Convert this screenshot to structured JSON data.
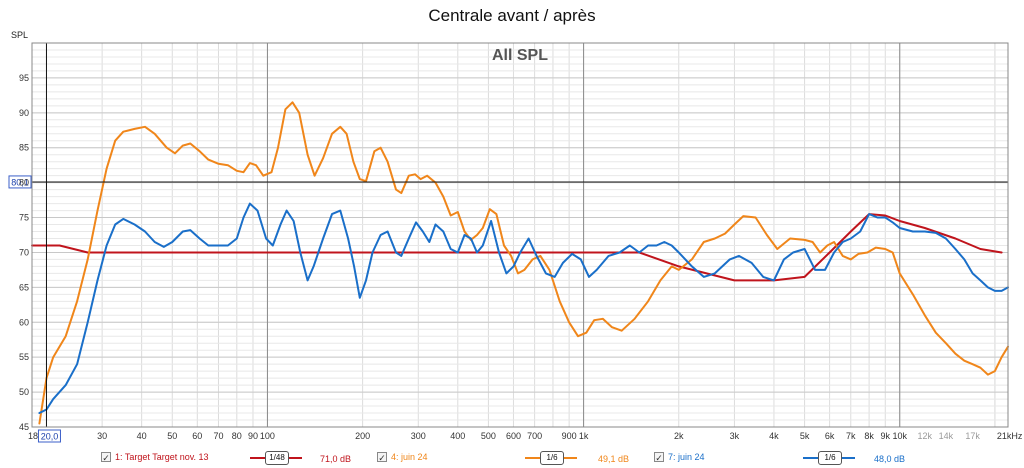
{
  "chart_data": {
    "type": "line",
    "title": "Centrale avant / après",
    "annotation": "All SPL",
    "ylabel": "SPL",
    "x_scale": "log",
    "xlim": [
      18,
      22000
    ],
    "ylim": [
      45,
      100
    ],
    "y_ticks": [
      45,
      50,
      55,
      60,
      65,
      70,
      75,
      80,
      85,
      90,
      95
    ],
    "x_ticks": [
      {
        "v": 18,
        "label": "18",
        "major": false
      },
      {
        "v": 30,
        "label": "30",
        "major": false
      },
      {
        "v": 40,
        "label": "40",
        "major": false
      },
      {
        "v": 50,
        "label": "50",
        "major": false
      },
      {
        "v": 60,
        "label": "60",
        "major": false
      },
      {
        "v": 70,
        "label": "70",
        "major": false
      },
      {
        "v": 80,
        "label": "80",
        "major": false
      },
      {
        "v": 90,
        "label": "90",
        "major": false
      },
      {
        "v": 100,
        "label": "100",
        "major": true
      },
      {
        "v": 200,
        "label": "200",
        "major": false
      },
      {
        "v": 300,
        "label": "300",
        "major": false
      },
      {
        "v": 400,
        "label": "400",
        "major": false
      },
      {
        "v": 500,
        "label": "500",
        "major": false
      },
      {
        "v": 600,
        "label": "600",
        "major": false
      },
      {
        "v": 700,
        "label": "700",
        "major": false
      },
      {
        "v": 900,
        "label": "900",
        "major": false
      },
      {
        "v": 1000,
        "label": "1k",
        "major": true
      },
      {
        "v": 2000,
        "label": "2k",
        "major": false
      },
      {
        "v": 3000,
        "label": "3k",
        "major": false
      },
      {
        "v": 4000,
        "label": "4k",
        "major": false
      },
      {
        "v": 5000,
        "label": "5k",
        "major": false
      },
      {
        "v": 6000,
        "label": "6k",
        "major": false
      },
      {
        "v": 7000,
        "label": "7k",
        "major": false
      },
      {
        "v": 8000,
        "label": "8k",
        "major": false
      },
      {
        "v": 9000,
        "label": "9k",
        "major": false
      },
      {
        "v": 10000,
        "label": "10k",
        "major": true
      },
      {
        "v": 12000,
        "label": "12k",
        "major": false,
        "grey": true
      },
      {
        "v": 14000,
        "label": "14k",
        "major": false,
        "grey": true
      },
      {
        "v": 17000,
        "label": "17k",
        "major": false,
        "grey": true
      },
      {
        "v": 21000,
        "label": "21kHz",
        "major": false
      }
    ],
    "cursor": {
      "x": 20.0,
      "x_label": "20,0",
      "y": 80.1,
      "y_label": "80,1"
    },
    "grid": true,
    "legend": "bottom",
    "series": [
      {
        "name": "1: Target Target nov. 13",
        "color": "#c0141c",
        "smoothing": "1/48",
        "value_label": "71,0 dB",
        "points": [
          [
            18,
            71
          ],
          [
            22,
            71
          ],
          [
            27,
            70
          ],
          [
            40,
            70
          ],
          [
            100,
            70
          ],
          [
            200,
            70
          ],
          [
            500,
            70
          ],
          [
            1000,
            70
          ],
          [
            1500,
            70
          ],
          [
            2000,
            68
          ],
          [
            3000,
            66
          ],
          [
            4000,
            66
          ],
          [
            5000,
            66.5
          ],
          [
            6000,
            70
          ],
          [
            7000,
            73
          ],
          [
            8000,
            75.5
          ],
          [
            9000,
            75.3
          ],
          [
            10000,
            74.5
          ],
          [
            12000,
            73.5
          ],
          [
            15000,
            72
          ],
          [
            18000,
            70.5
          ],
          [
            21000,
            70
          ]
        ]
      },
      {
        "name": "4: juin 24",
        "color": "#f0861a",
        "smoothing": "1/6",
        "value_label": "49,1 dB",
        "points": [
          [
            19,
            45.5
          ],
          [
            20,
            52
          ],
          [
            21,
            55
          ],
          [
            23,
            58
          ],
          [
            25,
            63
          ],
          [
            27,
            69
          ],
          [
            29,
            76
          ],
          [
            31,
            82
          ],
          [
            33,
            86
          ],
          [
            35,
            87.3
          ],
          [
            38,
            87.7
          ],
          [
            41,
            88
          ],
          [
            44,
            87
          ],
          [
            48,
            85
          ],
          [
            51,
            84.2
          ],
          [
            54,
            85.3
          ],
          [
            57,
            85.6
          ],
          [
            61,
            84.5
          ],
          [
            65,
            83.3
          ],
          [
            70,
            82.7
          ],
          [
            75,
            82.5
          ],
          [
            80,
            81.7
          ],
          [
            84,
            81.5
          ],
          [
            88,
            82.8
          ],
          [
            92,
            82.5
          ],
          [
            97,
            81
          ],
          [
            103,
            81.5
          ],
          [
            108,
            85
          ],
          [
            114,
            90.5
          ],
          [
            120,
            91.5
          ],
          [
            126,
            90
          ],
          [
            134,
            84
          ],
          [
            141,
            81
          ],
          [
            150,
            83.5
          ],
          [
            160,
            87
          ],
          [
            170,
            88
          ],
          [
            178,
            87
          ],
          [
            187,
            83
          ],
          [
            196,
            80.5
          ],
          [
            205,
            80.2
          ],
          [
            218,
            84.5
          ],
          [
            228,
            85
          ],
          [
            240,
            83
          ],
          [
            255,
            79
          ],
          [
            265,
            78.5
          ],
          [
            280,
            81
          ],
          [
            293,
            81.2
          ],
          [
            305,
            80.5
          ],
          [
            320,
            81
          ],
          [
            340,
            80
          ],
          [
            360,
            78
          ],
          [
            380,
            75.3
          ],
          [
            400,
            75.8
          ],
          [
            420,
            73
          ],
          [
            440,
            71.8
          ],
          [
            460,
            72.5
          ],
          [
            480,
            73.5
          ],
          [
            505,
            76.2
          ],
          [
            530,
            75.5
          ],
          [
            560,
            71
          ],
          [
            590,
            69.5
          ],
          [
            620,
            67
          ],
          [
            650,
            67.5
          ],
          [
            690,
            69
          ],
          [
            730,
            69.5
          ],
          [
            780,
            67.5
          ],
          [
            840,
            63
          ],
          [
            900,
            60
          ],
          [
            960,
            58
          ],
          [
            1020,
            58.5
          ],
          [
            1080,
            60.3
          ],
          [
            1150,
            60.5
          ],
          [
            1230,
            59.3
          ],
          [
            1320,
            58.8
          ],
          [
            1450,
            60.5
          ],
          [
            1600,
            63
          ],
          [
            1750,
            66
          ],
          [
            1900,
            68
          ],
          [
            2000,
            67.5
          ],
          [
            2200,
            69
          ],
          [
            2400,
            71.5
          ],
          [
            2600,
            72
          ],
          [
            2800,
            72.7
          ],
          [
            3000,
            74
          ],
          [
            3200,
            75.2
          ],
          [
            3500,
            75
          ],
          [
            3800,
            72.5
          ],
          [
            4100,
            70.5
          ],
          [
            4500,
            72
          ],
          [
            5000,
            71.8
          ],
          [
            5300,
            71.5
          ],
          [
            5600,
            70
          ],
          [
            5900,
            71
          ],
          [
            6200,
            71.5
          ],
          [
            6600,
            69.5
          ],
          [
            7000,
            69
          ],
          [
            7400,
            69.8
          ],
          [
            7900,
            70
          ],
          [
            8400,
            70.7
          ],
          [
            9000,
            70.5
          ],
          [
            9500,
            70
          ],
          [
            10000,
            67
          ],
          [
            11000,
            64
          ],
          [
            12000,
            61
          ],
          [
            13000,
            58.5
          ],
          [
            14000,
            57
          ],
          [
            15000,
            55.5
          ],
          [
            16000,
            54.5
          ],
          [
            17000,
            54
          ],
          [
            18000,
            53.5
          ],
          [
            19000,
            52.5
          ],
          [
            20000,
            53
          ],
          [
            21000,
            55
          ],
          [
            22000,
            56.5
          ]
        ]
      },
      {
        "name": "7: juin 24",
        "color": "#1a6fc9",
        "smoothing": "1/6",
        "value_label": "48,0 dB",
        "points": [
          [
            19,
            47
          ],
          [
            20,
            47.5
          ],
          [
            21,
            49
          ],
          [
            23,
            51
          ],
          [
            25,
            54
          ],
          [
            27,
            60
          ],
          [
            29,
            66
          ],
          [
            31,
            71
          ],
          [
            33,
            74
          ],
          [
            35,
            74.8
          ],
          [
            38,
            74
          ],
          [
            41,
            73
          ],
          [
            44,
            71.5
          ],
          [
            47,
            70.8
          ],
          [
            50,
            71.5
          ],
          [
            54,
            73
          ],
          [
            57,
            73.2
          ],
          [
            61,
            72
          ],
          [
            65,
            71
          ],
          [
            70,
            71
          ],
          [
            75,
            71
          ],
          [
            80,
            72
          ],
          [
            84,
            75
          ],
          [
            88,
            77
          ],
          [
            93,
            76
          ],
          [
            99,
            72
          ],
          [
            104,
            71
          ],
          [
            110,
            74
          ],
          [
            115,
            76
          ],
          [
            121,
            74.5
          ],
          [
            127,
            70
          ],
          [
            134,
            66
          ],
          [
            140,
            68
          ],
          [
            150,
            72
          ],
          [
            160,
            75.5
          ],
          [
            170,
            76
          ],
          [
            180,
            72
          ],
          [
            188,
            68
          ],
          [
            196,
            63.5
          ],
          [
            205,
            66
          ],
          [
            215,
            70
          ],
          [
            228,
            72.5
          ],
          [
            240,
            73
          ],
          [
            255,
            70
          ],
          [
            265,
            69.5
          ],
          [
            280,
            72
          ],
          [
            295,
            74.3
          ],
          [
            310,
            73
          ],
          [
            325,
            71.5
          ],
          [
            340,
            74
          ],
          [
            360,
            73
          ],
          [
            380,
            70.5
          ],
          [
            400,
            70
          ],
          [
            420,
            72.5
          ],
          [
            440,
            72
          ],
          [
            460,
            70
          ],
          [
            480,
            71
          ],
          [
            510,
            74.5
          ],
          [
            540,
            70
          ],
          [
            570,
            67
          ],
          [
            600,
            68
          ],
          [
            630,
            70
          ],
          [
            670,
            72
          ],
          [
            710,
            69.5
          ],
          [
            760,
            67
          ],
          [
            810,
            66.5
          ],
          [
            860,
            68.5
          ],
          [
            920,
            69.8
          ],
          [
            980,
            69
          ],
          [
            1040,
            66.5
          ],
          [
            1100,
            67.5
          ],
          [
            1200,
            69.5
          ],
          [
            1300,
            70
          ],
          [
            1400,
            71
          ],
          [
            1500,
            70
          ],
          [
            1600,
            71
          ],
          [
            1700,
            71
          ],
          [
            1800,
            71.5
          ],
          [
            1900,
            71
          ],
          [
            2000,
            70
          ],
          [
            2200,
            68
          ],
          [
            2400,
            66.5
          ],
          [
            2600,
            67
          ],
          [
            2900,
            69
          ],
          [
            3100,
            69.5
          ],
          [
            3400,
            68.5
          ],
          [
            3700,
            66.5
          ],
          [
            4000,
            66
          ],
          [
            4300,
            69
          ],
          [
            4600,
            70
          ],
          [
            5000,
            70.5
          ],
          [
            5400,
            67.5
          ],
          [
            5800,
            67.5
          ],
          [
            6200,
            70
          ],
          [
            6600,
            71.5
          ],
          [
            7000,
            72
          ],
          [
            7500,
            73
          ],
          [
            8000,
            75.5
          ],
          [
            8500,
            75
          ],
          [
            9000,
            75
          ],
          [
            9500,
            74.3
          ],
          [
            10000,
            73.5
          ],
          [
            11000,
            73
          ],
          [
            12000,
            73
          ],
          [
            13000,
            72.8
          ],
          [
            14000,
            72
          ],
          [
            15000,
            70.5
          ],
          [
            16000,
            69
          ],
          [
            17000,
            67
          ],
          [
            18000,
            66
          ],
          [
            19000,
            65
          ],
          [
            20000,
            64.5
          ],
          [
            21000,
            64.5
          ],
          [
            22000,
            65
          ]
        ]
      }
    ]
  },
  "legend_items": [
    {
      "name": "1: Target Target nov. 13",
      "smoothing": "1/48",
      "value_label": "71,0 dB",
      "color": "#c0141c"
    },
    {
      "name": "4: juin 24",
      "smoothing": "1/6",
      "value_label": "49,1 dB",
      "color": "#f0861a"
    },
    {
      "name": "7: juin 24",
      "smoothing": "1/6",
      "value_label": "48,0 dB",
      "color": "#1a6fc9"
    }
  ]
}
